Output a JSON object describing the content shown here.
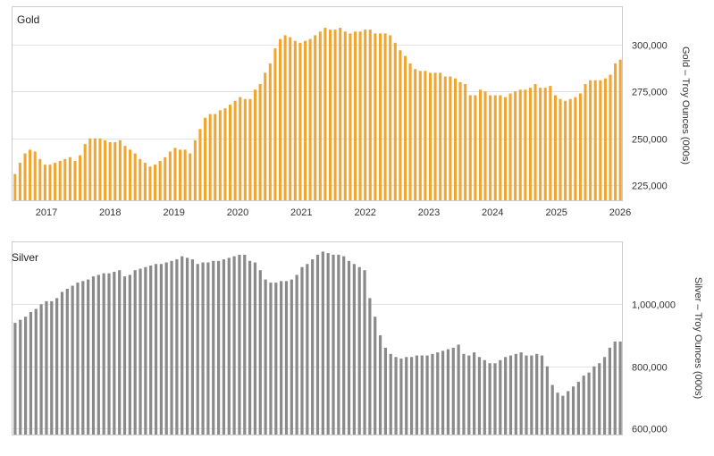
{
  "chart_data": [
    {
      "type": "bar",
      "title": "Gold",
      "ylabel": "Gold – Troy Ounces (000s)",
      "ylim": [
        217000,
        320000
      ],
      "yticks": [
        225000,
        250000,
        275000,
        300000
      ],
      "ytick_labels": [
        "225,000",
        "250,000",
        "275,000",
        "300,000"
      ],
      "x_tick_labels": [
        "2017",
        "2018",
        "2019",
        "2020",
        "2021",
        "2022",
        "2023",
        "2024",
        "2025",
        "2026"
      ],
      "grid": true,
      "color": "#f0a630",
      "values": [
        231000,
        237000,
        242000,
        244000,
        243000,
        239000,
        236000,
        236000,
        237000,
        238000,
        239000,
        240000,
        238000,
        241000,
        247000,
        250000,
        250000,
        250000,
        249000,
        248000,
        248000,
        249000,
        246000,
        244000,
        242000,
        239000,
        237000,
        235000,
        236000,
        238000,
        240000,
        243000,
        245000,
        244000,
        244000,
        242000,
        249000,
        255000,
        261000,
        263000,
        263000,
        265000,
        266000,
        268000,
        270000,
        272000,
        271000,
        271000,
        276000,
        279000,
        285000,
        290000,
        298000,
        303000,
        305000,
        304000,
        302000,
        301000,
        302000,
        303000,
        305000,
        307000,
        309000,
        308000,
        308000,
        309000,
        307000,
        306000,
        307000,
        307000,
        308000,
        308000,
        306000,
        306000,
        306000,
        305000,
        301000,
        297000,
        294000,
        290000,
        287000,
        286000,
        286000,
        285000,
        285000,
        285000,
        283000,
        283000,
        282000,
        280000,
        279000,
        273000,
        273000,
        276000,
        275000,
        273000,
        273000,
        273000,
        272000,
        274000,
        275000,
        276000,
        276000,
        277000,
        279000,
        277000,
        277000,
        278000,
        273000,
        271000,
        270000,
        271000,
        272000,
        274000,
        279000,
        281000,
        281000,
        281000,
        282000,
        284000,
        290000,
        292000
      ]
    },
    {
      "type": "bar",
      "title": "Silver",
      "ylabel": "Silver – Troy Ounces (000s)",
      "ylim": [
        580000,
        1200000
      ],
      "yticks": [
        600000,
        800000,
        1000000
      ],
      "ytick_labels": [
        "600,000",
        "800,000",
        "1,000,000"
      ],
      "x_tick_labels": [],
      "grid": true,
      "color": "#8a8a8a",
      "values": [
        940000,
        950000,
        960000,
        975000,
        985000,
        1000000,
        1010000,
        1010000,
        1020000,
        1040000,
        1050000,
        1060000,
        1070000,
        1075000,
        1080000,
        1090000,
        1095000,
        1100000,
        1100000,
        1105000,
        1110000,
        1090000,
        1095000,
        1110000,
        1115000,
        1120000,
        1125000,
        1130000,
        1130000,
        1135000,
        1140000,
        1145000,
        1155000,
        1150000,
        1145000,
        1130000,
        1135000,
        1135000,
        1140000,
        1140000,
        1145000,
        1150000,
        1155000,
        1160000,
        1160000,
        1140000,
        1135000,
        1110000,
        1080000,
        1070000,
        1070000,
        1075000,
        1075000,
        1080000,
        1095000,
        1120000,
        1130000,
        1145000,
        1160000,
        1170000,
        1165000,
        1160000,
        1160000,
        1155000,
        1140000,
        1130000,
        1120000,
        1110000,
        1020000,
        960000,
        900000,
        860000,
        840000,
        830000,
        825000,
        830000,
        830000,
        835000,
        835000,
        835000,
        840000,
        845000,
        850000,
        855000,
        860000,
        870000,
        840000,
        835000,
        845000,
        830000,
        820000,
        810000,
        810000,
        820000,
        830000,
        835000,
        840000,
        845000,
        835000,
        835000,
        840000,
        835000,
        800000,
        740000,
        715000,
        705000,
        720000,
        735000,
        750000,
        770000,
        780000,
        800000,
        810000,
        830000,
        860000,
        880000,
        880000
      ]
    }
  ]
}
